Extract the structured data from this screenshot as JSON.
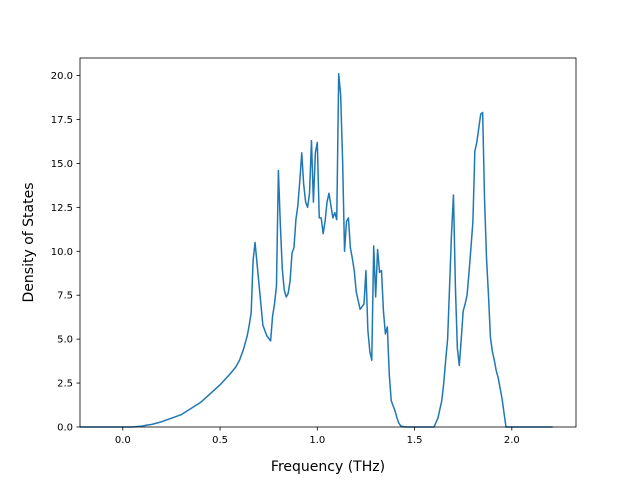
{
  "chart_data": {
    "type": "line",
    "title": "",
    "xlabel": "Frequency (THz)",
    "ylabel": "Density of States",
    "xlim": [
      -0.22,
      2.33
    ],
    "ylim": [
      0,
      21.0
    ],
    "xticks": [
      0.0,
      0.5,
      1.0,
      1.5,
      2.0
    ],
    "xtick_labels": [
      "0.0",
      "0.5",
      "1.0",
      "1.5",
      "2.0"
    ],
    "yticks": [
      0.0,
      2.5,
      5.0,
      7.5,
      10.0,
      12.5,
      15.0,
      17.5,
      20.0
    ],
    "ytick_labels": [
      "0.0",
      "2.5",
      "5.0",
      "7.5",
      "10.0",
      "12.5",
      "15.0",
      "17.5",
      "20.0"
    ],
    "grid": false,
    "legend": "none",
    "colors": {
      "line": "#1f77b4",
      "axes": "#000000",
      "background": "#ffffff"
    },
    "series": [
      {
        "x": [
          -0.22,
          0.05,
          0.1,
          0.12,
          0.15,
          0.2,
          0.3,
          0.4,
          0.5,
          0.55,
          0.58,
          0.6,
          0.62,
          0.64,
          0.65,
          0.66,
          0.67,
          0.68,
          0.72,
          0.74,
          0.76,
          0.77,
          0.78,
          0.79,
          0.8,
          0.81,
          0.82,
          0.83,
          0.84,
          0.85,
          0.86,
          0.87,
          0.88,
          0.89,
          0.9,
          0.91,
          0.92,
          0.93,
          0.94,
          0.95,
          0.96,
          0.97,
          0.98,
          0.99,
          1.0,
          1.01,
          1.02,
          1.03,
          1.04,
          1.05,
          1.06,
          1.07,
          1.08,
          1.09,
          1.1,
          1.11,
          1.12,
          1.13,
          1.14,
          1.15,
          1.16,
          1.17,
          1.18,
          1.19,
          1.2,
          1.22,
          1.24,
          1.25,
          1.26,
          1.27,
          1.28,
          1.29,
          1.3,
          1.31,
          1.32,
          1.33,
          1.34,
          1.35,
          1.36,
          1.37,
          1.38,
          1.39,
          1.4,
          1.41,
          1.42,
          1.43,
          1.45,
          1.48,
          1.5,
          1.51,
          1.52,
          1.55,
          1.58,
          1.6,
          1.62,
          1.64,
          1.65,
          1.66,
          1.67,
          1.68,
          1.69,
          1.7,
          1.71,
          1.72,
          1.73,
          1.74,
          1.75,
          1.76,
          1.77,
          1.78,
          1.79,
          1.8,
          1.81,
          1.82,
          1.83,
          1.84,
          1.85,
          1.86,
          1.87,
          1.88,
          1.89,
          1.9,
          1.91,
          1.92,
          1.93,
          1.94,
          1.95,
          1.96,
          1.97,
          1.98,
          1.99,
          2.0,
          2.01,
          2.02,
          2.05,
          2.1,
          2.21
        ],
        "y": [
          0.0,
          0.0,
          0.05,
          0.1,
          0.15,
          0.3,
          0.7,
          1.4,
          2.4,
          3.0,
          3.4,
          3.8,
          4.4,
          5.2,
          5.8,
          6.5,
          9.5,
          10.5,
          5.8,
          5.2,
          4.9,
          6.3,
          7.0,
          8.0,
          14.6,
          11.5,
          9.0,
          7.8,
          7.4,
          7.6,
          8.3,
          9.9,
          10.2,
          11.8,
          12.6,
          14.0,
          15.6,
          13.8,
          12.8,
          12.5,
          13.3,
          16.3,
          12.8,
          15.6,
          16.2,
          11.9,
          11.9,
          11.0,
          11.7,
          12.8,
          13.3,
          12.6,
          11.9,
          12.2,
          11.8,
          20.1,
          18.9,
          15.2,
          10.0,
          11.7,
          11.9,
          10.2,
          9.6,
          8.9,
          7.7,
          6.7,
          7.0,
          8.9,
          5.5,
          4.3,
          3.8,
          10.3,
          7.4,
          10.1,
          8.8,
          8.9,
          6.6,
          5.3,
          5.7,
          3.0,
          1.5,
          1.2,
          0.9,
          0.5,
          0.2,
          0.05,
          0.0,
          0.0,
          0.0,
          0.0,
          0.0,
          0.0,
          0.0,
          0.0,
          0.5,
          1.5,
          2.5,
          3.8,
          5.0,
          8.0,
          11.0,
          13.2,
          8.0,
          4.5,
          3.5,
          5.0,
          6.6,
          7.0,
          7.5,
          8.8,
          10.2,
          11.7,
          15.7,
          16.2,
          17.0,
          17.8,
          17.9,
          12.9,
          9.6,
          7.5,
          5.1,
          4.3,
          3.8,
          3.2,
          2.8,
          2.2,
          1.6,
          0.8,
          0.0,
          0.0,
          0.0,
          0.0,
          0.0,
          0.0,
          0.0,
          0.0,
          0.0
        ]
      }
    ]
  }
}
